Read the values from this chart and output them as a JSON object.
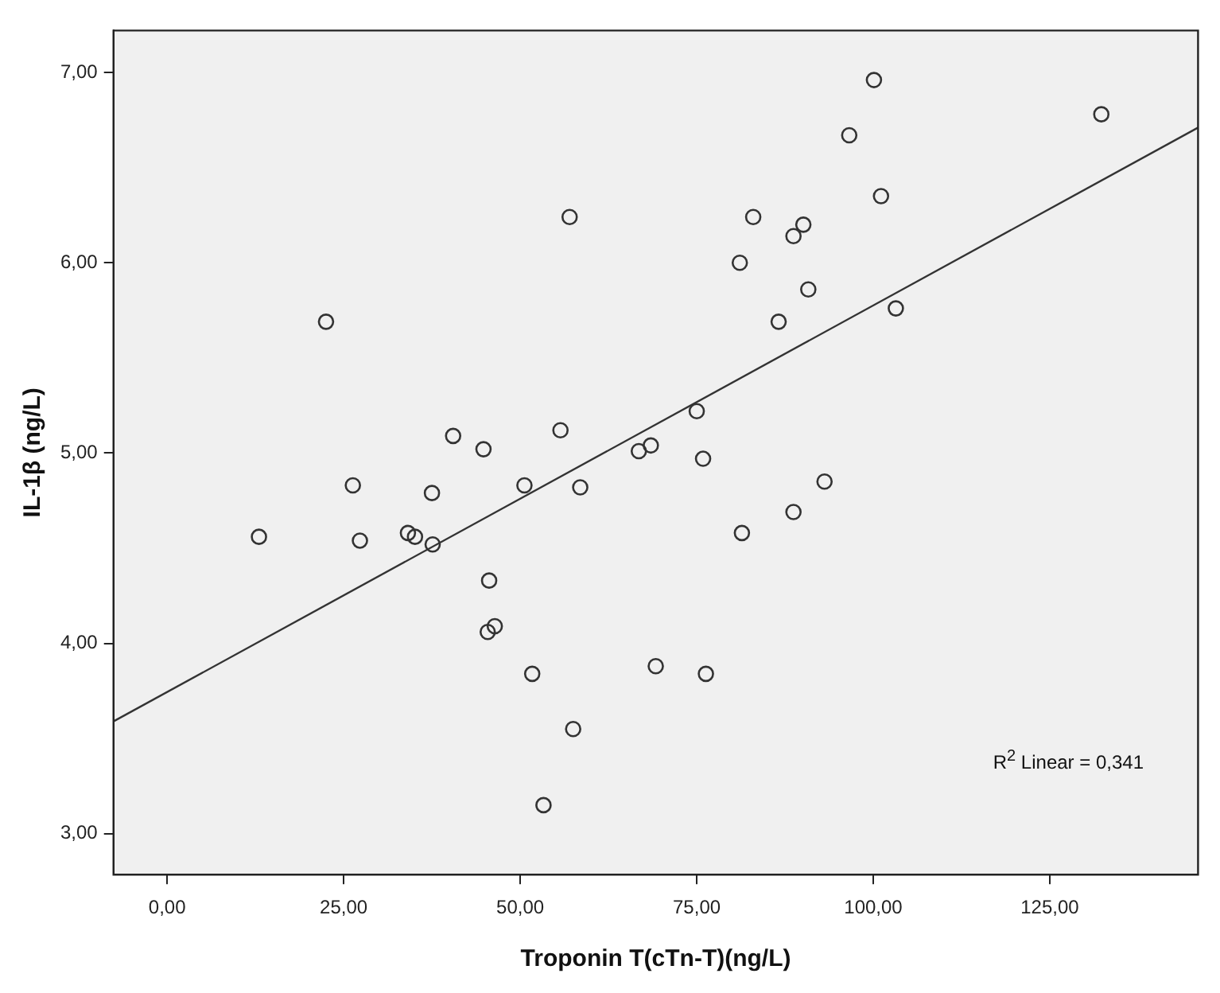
{
  "chart_data": {
    "type": "scatter",
    "xlabel": "Troponin T(cTn-T)(ng/L)",
    "ylabel": "IL-1β (ng/L)",
    "xlim": [
      -7.6,
      146
    ],
    "ylim": [
      2.785,
      7.22
    ],
    "xticks": [
      {
        "value": 0,
        "label": "0,00"
      },
      {
        "value": 25,
        "label": "25,00"
      },
      {
        "value": 50,
        "label": "50,00"
      },
      {
        "value": 75,
        "label": "75,00"
      },
      {
        "value": 100,
        "label": "100,00"
      },
      {
        "value": 125,
        "label": "125,00"
      }
    ],
    "yticks": [
      {
        "value": 3,
        "label": "3,00"
      },
      {
        "value": 4,
        "label": "4,00"
      },
      {
        "value": 5,
        "label": "5,00"
      },
      {
        "value": 6,
        "label": "6,00"
      },
      {
        "value": 7,
        "label": "7,00"
      }
    ],
    "grid": false,
    "legend": false,
    "marker": "circle",
    "series": [
      {
        "color": "#333333",
        "x": [
          57.0,
          22.5,
          100.1,
          132.3,
          96.6,
          101.1,
          83.0,
          90.1,
          88.7,
          81.1,
          90.8,
          86.6,
          103.2,
          13.0,
          26.3,
          27.3,
          40.5,
          44.8,
          37.5,
          34.1,
          35.1,
          37.6,
          45.6,
          46.4,
          45.4,
          55.7,
          50.6,
          58.5,
          51.7,
          57.5,
          66.8,
          68.5,
          69.2,
          53.3,
          75.0,
          75.9,
          93.1,
          88.7,
          81.4,
          76.3
        ],
        "values": [
          6.24,
          5.69,
          6.96,
          6.78,
          6.67,
          6.35,
          6.24,
          6.2,
          6.14,
          6.0,
          5.86,
          5.69,
          5.76,
          4.56,
          4.83,
          4.54,
          5.09,
          5.02,
          4.79,
          4.58,
          4.56,
          4.52,
          4.33,
          4.09,
          4.06,
          5.12,
          4.83,
          4.82,
          3.84,
          3.55,
          5.01,
          5.04,
          3.88,
          3.15,
          5.22,
          4.97,
          4.85,
          4.69,
          4.58,
          3.84
        ]
      },
      {
        "type": "line",
        "color": "#333333",
        "marker": "none",
        "x": [
          -7.6,
          146
        ],
        "values": [
          3.59,
          6.71
        ]
      }
    ],
    "annotations": [
      "R$^{2}$ Linear = 0,341"
    ]
  }
}
